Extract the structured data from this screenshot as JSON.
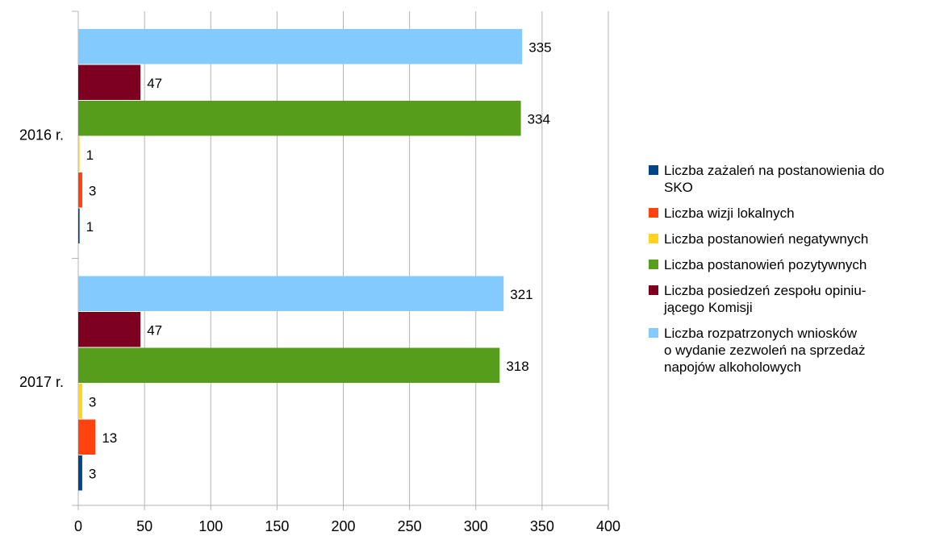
{
  "chart_data": {
    "type": "bar",
    "orientation": "horizontal",
    "categories": [
      "2016 r.",
      "2017 r."
    ],
    "series": [
      {
        "name": "Liczba zażaleń na postanowienia do SKO",
        "legend_lines": [
          "Liczba zażaleń na postanowienia do",
          "SKO"
        ],
        "color": "#004586",
        "values": [
          1,
          3
        ]
      },
      {
        "name": "Liczba wizji lokalnych",
        "legend_lines": [
          "Liczba wizji lokalnych"
        ],
        "color": "#ff420e",
        "values": [
          3,
          13
        ]
      },
      {
        "name": "Liczba postanowień negatywnych",
        "legend_lines": [
          "Liczba postanowień negatywnych"
        ],
        "color": "#ffd320",
        "values": [
          1,
          3
        ]
      },
      {
        "name": "Liczba postanowień pozytywnych",
        "legend_lines": [
          "Liczba postanowień pozytywnych"
        ],
        "color": "#579d1c",
        "values": [
          334,
          318
        ]
      },
      {
        "name": "Liczba posiedzeń zespołu opiniującego Komisji",
        "legend_lines": [
          "Liczba posiedzeń zespołu opiniu-",
          "jącego Komisji"
        ],
        "color": "#7e0021",
        "values": [
          47,
          47
        ]
      },
      {
        "name": "Liczba rozpatrzonych wniosków o wydanie zezwoleń na sprzedaż napojów alkoholowych",
        "legend_lines": [
          "Liczba rozpatrzonych wniosków",
          "o wydanie zezwoleń na sprzedaż",
          "napojów alkoholowych"
        ],
        "color": "#83caff",
        "values": [
          335,
          321
        ]
      }
    ],
    "xlim": [
      0,
      400
    ],
    "xticks": [
      0,
      50,
      100,
      150,
      200,
      250,
      300,
      350,
      400
    ],
    "grid": true,
    "legend_position": "right",
    "title": "",
    "xlabel": "",
    "ylabel": ""
  }
}
